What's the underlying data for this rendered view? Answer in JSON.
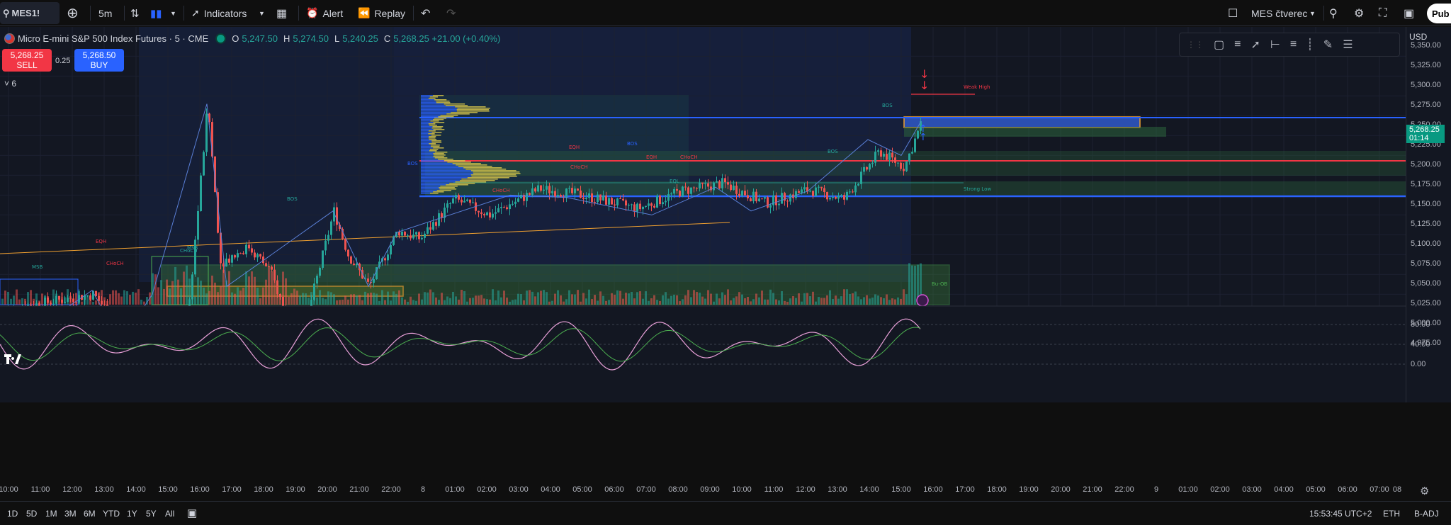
{
  "toolbar": {
    "symbol": "MES1!",
    "add": "+",
    "interval": "5m",
    "indicators": "Indicators",
    "alert": "Alert",
    "replay": "Replay",
    "layout_name": "MES čtverec",
    "publish": "Pub"
  },
  "legend": {
    "title": "Micro E-mini S&P 500 Index Futures · 5 · CME",
    "open_k": "O",
    "open_v": "5,247.50",
    "high_k": "H",
    "high_v": "5,274.50",
    "low_k": "L",
    "low_v": "5,240.25",
    "close_k": "C",
    "close_v": "5,268.25 +21.00 (+0.40%)"
  },
  "trade": {
    "sell_price": "5,268.25",
    "sell_label": "SELL",
    "spread": "0.25",
    "buy_price": "5,268.50",
    "buy_label": "BUY",
    "collapse": "˅ 6"
  },
  "price_axis": {
    "currency": "USD",
    "labels": [
      "5,350.00",
      "5,325.00",
      "5,300.00",
      "5,275.00",
      "5,250.00",
      "5,225.00",
      "5,200.00",
      "5,175.00",
      "5,150.00",
      "5,125.00",
      "5,100.00",
      "5,075.00",
      "5,050.00",
      "5,025.00",
      "5,000.00",
      "4,975.00"
    ],
    "current_price": "5,268.25",
    "countdown": "01:14",
    "osc_labels": [
      "80.00",
      "40.00",
      "0.00"
    ]
  },
  "time_axis": [
    "10:00",
    "11:00",
    "12:00",
    "13:00",
    "14:00",
    "15:00",
    "16:00",
    "17:00",
    "18:00",
    "19:00",
    "20:00",
    "21:00",
    "22:00",
    "8",
    "01:00",
    "02:00",
    "03:00",
    "04:00",
    "05:00",
    "06:00",
    "07:00",
    "08:00",
    "09:00",
    "10:00",
    "11:00",
    "12:00",
    "13:00",
    "14:00",
    "15:00",
    "16:00",
    "17:00",
    "18:00",
    "19:00",
    "20:00",
    "21:00",
    "22:00",
    "9",
    "01:00",
    "02:00",
    "03:00",
    "04:00",
    "05:00",
    "06:00",
    "07:00",
    "08"
  ],
  "annotations": {
    "weak_high": "Weak High",
    "strong_low": "Strong Low",
    "bos": "BOS",
    "choch": "CHoCH",
    "eqh": "EQH",
    "eql": "EQL",
    "msb": "MSB",
    "bu_ob": "Bu-OB"
  },
  "bottombar": {
    "ranges": [
      "1D",
      "5D",
      "1M",
      "3M",
      "6M",
      "YTD",
      "1Y",
      "5Y",
      "All"
    ],
    "clock": "15:53:45 UTC+2",
    "session": "ETH",
    "adj": "B-ADJ"
  },
  "colors": {
    "up": "#26a69a",
    "down": "#ef5350",
    "accent": "#2962ff",
    "current": "#089981"
  }
}
